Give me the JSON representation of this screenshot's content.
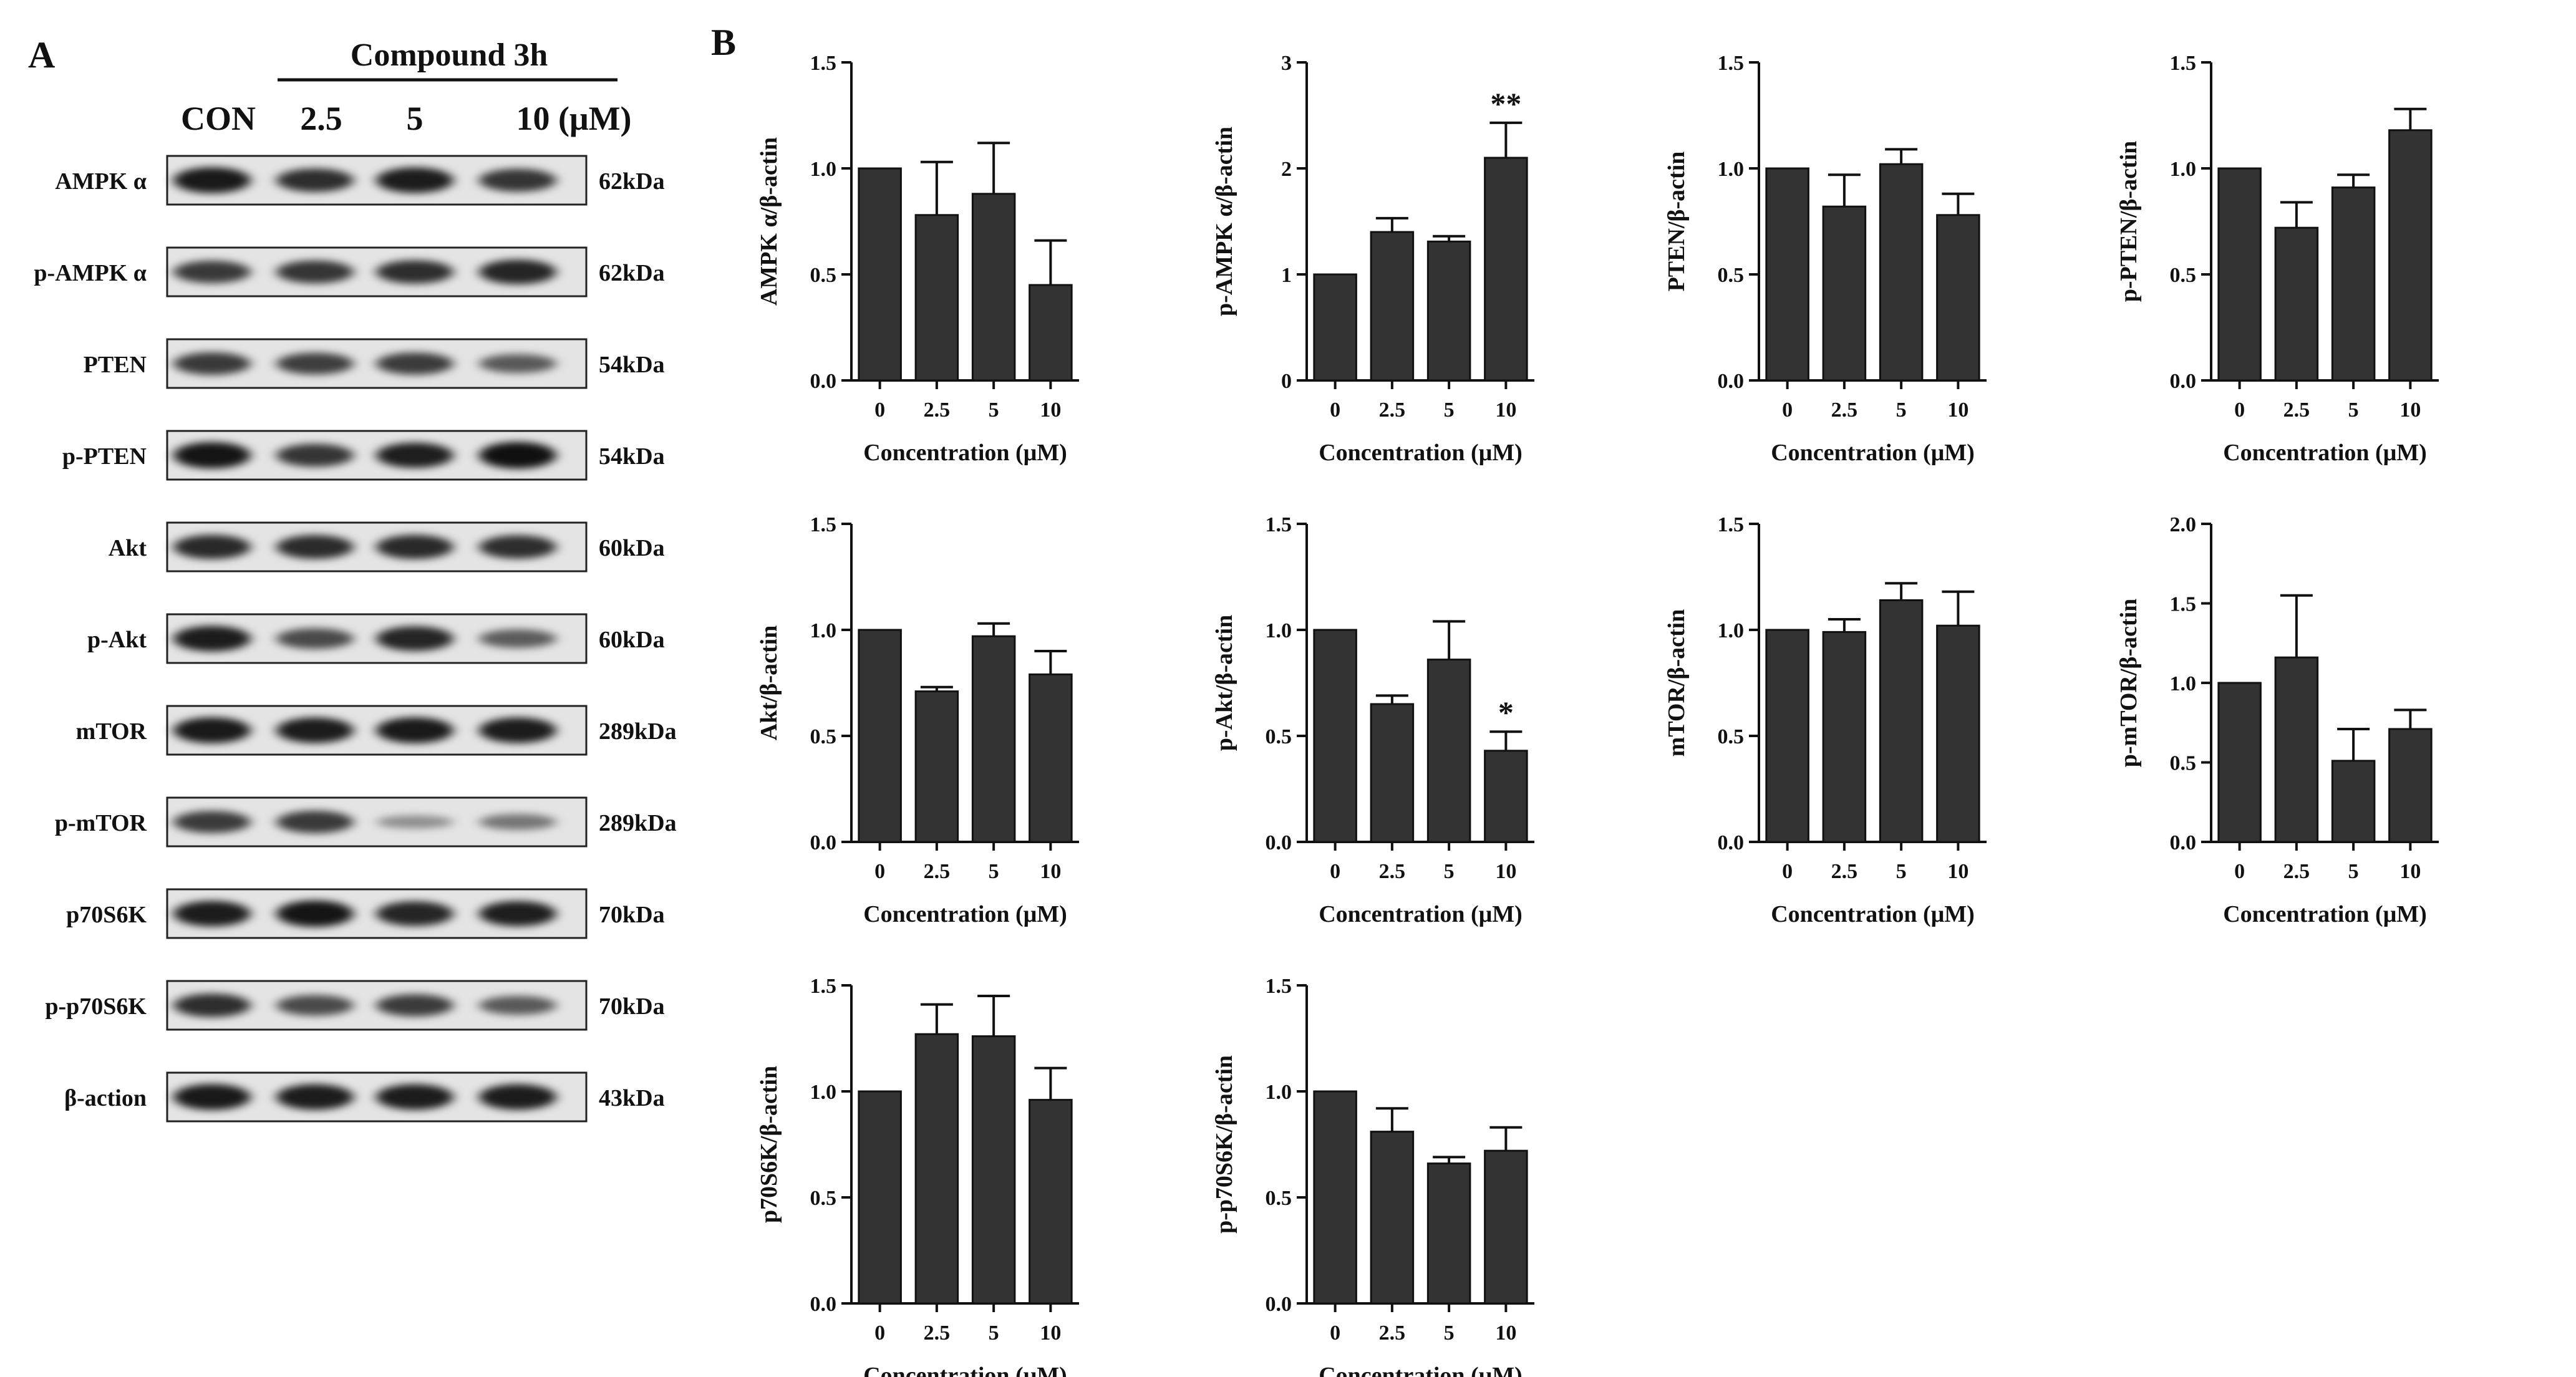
{
  "figure": {
    "panel_a_label": "A",
    "panel_b_label": "B"
  },
  "western_blot": {
    "treatment_label": "Compound 3h",
    "lane_labels": [
      "CON",
      "2.5",
      "5",
      "10 (μM)"
    ],
    "rows": [
      {
        "protein": "AMPK α",
        "size": "62kDa",
        "bands": [
          0.92,
          0.78,
          0.9,
          0.75
        ]
      },
      {
        "protein": "p-AMPK α",
        "size": "62kDa",
        "bands": [
          0.72,
          0.75,
          0.78,
          0.85
        ]
      },
      {
        "protein": "PTEN",
        "size": "54kDa",
        "bands": [
          0.72,
          0.68,
          0.7,
          0.52
        ]
      },
      {
        "protein": "p-PTEN",
        "size": "54kDa",
        "bands": [
          0.95,
          0.75,
          0.88,
          0.97
        ]
      },
      {
        "protein": "Akt",
        "size": "60kDa",
        "bands": [
          0.82,
          0.8,
          0.82,
          0.78
        ]
      },
      {
        "protein": "p-Akt",
        "size": "60kDa",
        "bands": [
          0.9,
          0.62,
          0.85,
          0.5
        ]
      },
      {
        "protein": "mTOR",
        "size": "289kDa",
        "bands": [
          0.92,
          0.9,
          0.92,
          0.9
        ]
      },
      {
        "protein": "p-mTOR",
        "size": "289kDa",
        "bands": [
          0.7,
          0.72,
          0.18,
          0.35
        ]
      },
      {
        "protein": "p70S6K",
        "size": "70kDa",
        "bands": [
          0.9,
          0.95,
          0.85,
          0.88
        ]
      },
      {
        "protein": "p-p70S6K",
        "size": "70kDa",
        "bands": [
          0.78,
          0.62,
          0.7,
          0.52
        ]
      },
      {
        "protein": "β-action",
        "size": "43kDa",
        "bands": [
          0.92,
          0.9,
          0.9,
          0.9
        ]
      }
    ]
  },
  "chart_data": [
    {
      "type": "bar",
      "title": "",
      "categories": [
        "0",
        "2.5",
        "5",
        "10"
      ],
      "values": [
        1.0,
        0.78,
        0.88,
        0.45
      ],
      "errors": [
        0,
        0.25,
        0.24,
        0.21
      ],
      "significance": [
        "",
        "",
        "",
        ""
      ],
      "xlabel": "Concentration (μM)",
      "ylabel": "AMPK α/β-actin",
      "ylim": [
        0,
        1.5
      ],
      "yticks": [
        "0.0",
        "0.5",
        "1.0",
        "1.5"
      ]
    },
    {
      "type": "bar",
      "title": "",
      "categories": [
        "0",
        "2.5",
        "5",
        "10"
      ],
      "values": [
        1.0,
        1.4,
        1.31,
        2.1
      ],
      "errors": [
        0,
        0.13,
        0.05,
        0.33
      ],
      "significance": [
        "",
        "",
        "",
        "**"
      ],
      "xlabel": "Concentration (μM)",
      "ylabel": "p-AMPK α/β-actin",
      "ylim": [
        0,
        3
      ],
      "yticks": [
        "0",
        "1",
        "2",
        "3"
      ]
    },
    {
      "type": "bar",
      "title": "",
      "categories": [
        "0",
        "2.5",
        "5",
        "10"
      ],
      "values": [
        1.0,
        0.82,
        1.02,
        0.78
      ],
      "errors": [
        0,
        0.15,
        0.07,
        0.1
      ],
      "significance": [
        "",
        "",
        "",
        ""
      ],
      "xlabel": "Concentration (μM)",
      "ylabel": "PTEN/β-actin",
      "ylim": [
        0,
        1.5
      ],
      "yticks": [
        "0.0",
        "0.5",
        "1.0",
        "1.5"
      ]
    },
    {
      "type": "bar",
      "title": "",
      "categories": [
        "0",
        "2.5",
        "5",
        "10"
      ],
      "values": [
        1.0,
        0.72,
        0.91,
        1.18
      ],
      "errors": [
        0,
        0.12,
        0.06,
        0.1
      ],
      "significance": [
        "",
        "",
        "",
        ""
      ],
      "xlabel": "Concentration (μM)",
      "ylabel": "p-PTEN/β-actin",
      "ylim": [
        0,
        1.5
      ],
      "yticks": [
        "0.0",
        "0.5",
        "1.0",
        "1.5"
      ]
    },
    {
      "type": "bar",
      "title": "",
      "categories": [
        "0",
        "2.5",
        "5",
        "10"
      ],
      "values": [
        1.0,
        0.71,
        0.97,
        0.79
      ],
      "errors": [
        0,
        0.02,
        0.06,
        0.11
      ],
      "significance": [
        "",
        "",
        "",
        ""
      ],
      "xlabel": "Concentration (μM)",
      "ylabel": "Akt/β-actin",
      "ylim": [
        0,
        1.5
      ],
      "yticks": [
        "0.0",
        "0.5",
        "1.0",
        "1.5"
      ]
    },
    {
      "type": "bar",
      "title": "",
      "categories": [
        "0",
        "2.5",
        "5",
        "10"
      ],
      "values": [
        1.0,
        0.65,
        0.86,
        0.43
      ],
      "errors": [
        0,
        0.04,
        0.18,
        0.09
      ],
      "significance": [
        "",
        "",
        "",
        "*"
      ],
      "xlabel": "Concentration (μM)",
      "ylabel": "p-Akt/β-actin",
      "ylim": [
        0,
        1.5
      ],
      "yticks": [
        "0.0",
        "0.5",
        "1.0",
        "1.5"
      ]
    },
    {
      "type": "bar",
      "title": "",
      "categories": [
        "0",
        "2.5",
        "5",
        "10"
      ],
      "values": [
        1.0,
        0.99,
        1.14,
        1.02
      ],
      "errors": [
        0,
        0.06,
        0.08,
        0.16
      ],
      "significance": [
        "",
        "",
        "",
        ""
      ],
      "xlabel": "Concentration (μM)",
      "ylabel": "mTOR/β-actin",
      "ylim": [
        0,
        1.5
      ],
      "yticks": [
        "0.0",
        "0.5",
        "1.0",
        "1.5"
      ]
    },
    {
      "type": "bar",
      "title": "",
      "categories": [
        "0",
        "2.5",
        "5",
        "10"
      ],
      "values": [
        1.0,
        1.16,
        0.51,
        0.71
      ],
      "errors": [
        0,
        0.39,
        0.2,
        0.12
      ],
      "significance": [
        "",
        "",
        "",
        ""
      ],
      "xlabel": "Concentration (μM)",
      "ylabel": "p-mTOR/β-actin",
      "ylim": [
        0,
        2.0
      ],
      "yticks": [
        "0.0",
        "0.5",
        "1.0",
        "1.5",
        "2.0"
      ]
    },
    {
      "type": "bar",
      "title": "",
      "categories": [
        "0",
        "2.5",
        "5",
        "10"
      ],
      "values": [
        1.0,
        1.27,
        1.26,
        0.96
      ],
      "errors": [
        0,
        0.14,
        0.19,
        0.15
      ],
      "significance": [
        "",
        "",
        "",
        ""
      ],
      "xlabel": "Concentration (μM)",
      "ylabel": "p70S6K/β-actin",
      "ylim": [
        0,
        1.5
      ],
      "yticks": [
        "0.0",
        "0.5",
        "1.0",
        "1.5"
      ]
    },
    {
      "type": "bar",
      "title": "",
      "categories": [
        "0",
        "2.5",
        "5",
        "10"
      ],
      "values": [
        1.0,
        0.81,
        0.66,
        0.72
      ],
      "errors": [
        0,
        0.11,
        0.03,
        0.11
      ],
      "significance": [
        "",
        "",
        "",
        ""
      ],
      "xlabel": "Concentration (μM)",
      "ylabel": "p-p70S6K/β-actin",
      "ylim": [
        0,
        1.5
      ],
      "yticks": [
        "0.0",
        "0.5",
        "1.0",
        "1.5"
      ]
    }
  ]
}
